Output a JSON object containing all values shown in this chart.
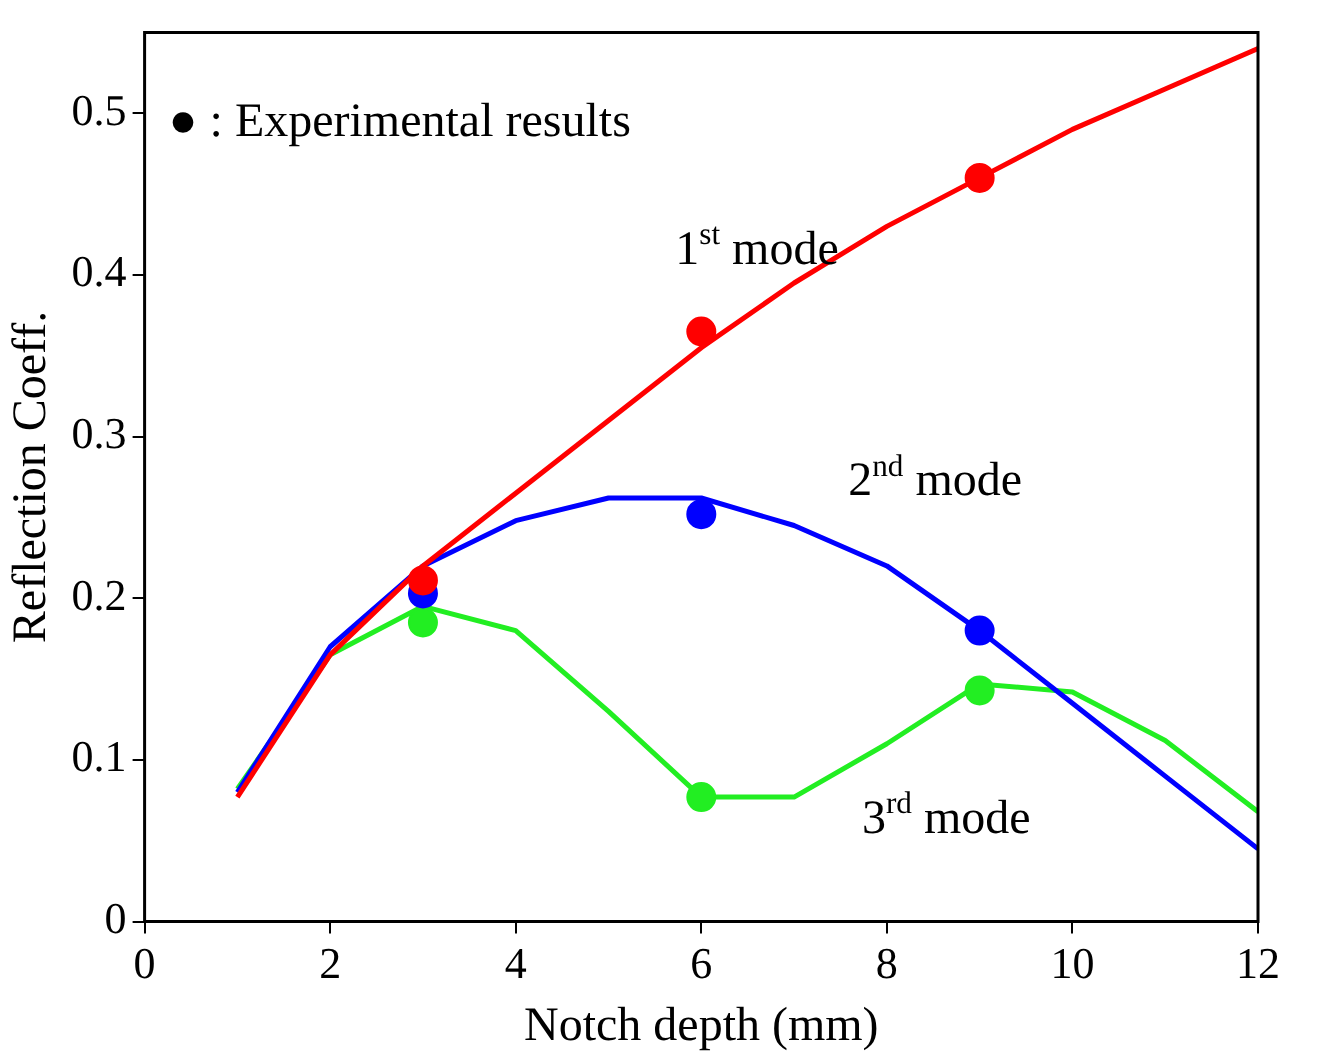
{
  "chart_data": {
    "type": "line",
    "xlabel": "Notch depth (mm)",
    "ylabel": "Reflection Coeff.",
    "xlim": [
      0,
      12
    ],
    "xticks": [
      0,
      2,
      4,
      6,
      8,
      10,
      12
    ],
    "ylim": [
      0,
      0.55
    ],
    "yticks": [
      0,
      0.1,
      0.2,
      0.3,
      0.4,
      0.5
    ],
    "grid": false,
    "legend": false,
    "series": [
      {
        "type": "line",
        "name": "1$^{st}$ mode",
        "color": "#ff0000",
        "marker": "none",
        "x": [
          1,
          2,
          3,
          4,
          5,
          6,
          7,
          8,
          9,
          10,
          11,
          12
        ],
        "values": [
          0.077,
          0.165,
          0.22,
          0.265,
          0.31,
          0.355,
          0.395,
          0.43,
          0.46,
          0.49,
          0.515,
          0.54
        ]
      },
      {
        "type": "line",
        "name": "2$^{nd}$ mode",
        "color": "#0000ff",
        "marker": "none",
        "x": [
          1,
          2,
          3,
          4,
          5,
          6,
          7,
          8,
          9,
          10,
          11,
          12
        ],
        "values": [
          0.08,
          0.17,
          0.22,
          0.248,
          0.262,
          0.262,
          0.245,
          0.22,
          0.18,
          0.135,
          0.09,
          0.045
        ]
      },
      {
        "type": "line",
        "name": "3$^{rd}$ mode",
        "color": "#22ee22",
        "marker": "none",
        "x": [
          1,
          2,
          3,
          4,
          5,
          6,
          7,
          8,
          9,
          10,
          11,
          12
        ],
        "values": [
          0.082,
          0.165,
          0.195,
          0.18,
          0.13,
          0.077,
          0.077,
          0.11,
          0.147,
          0.142,
          0.112,
          0.068
        ]
      },
      {
        "type": "scatter",
        "color": "#ff0000",
        "marker": "circle",
        "x": [
          3,
          6,
          9
        ],
        "values": [
          0.211,
          0.365,
          0.46
        ]
      },
      {
        "type": "scatter",
        "color": "#0000ff",
        "marker": "circle",
        "x": [
          3,
          6,
          9
        ],
        "values": [
          0.203,
          0.252,
          0.18
        ]
      },
      {
        "type": "scatter",
        "color": "#22ee22",
        "marker": "circle",
        "x": [
          3,
          6,
          9
        ],
        "values": [
          0.185,
          0.077,
          0.143
        ]
      }
    ],
    "annotations": [
      "● : Experimental results"
    ]
  }
}
